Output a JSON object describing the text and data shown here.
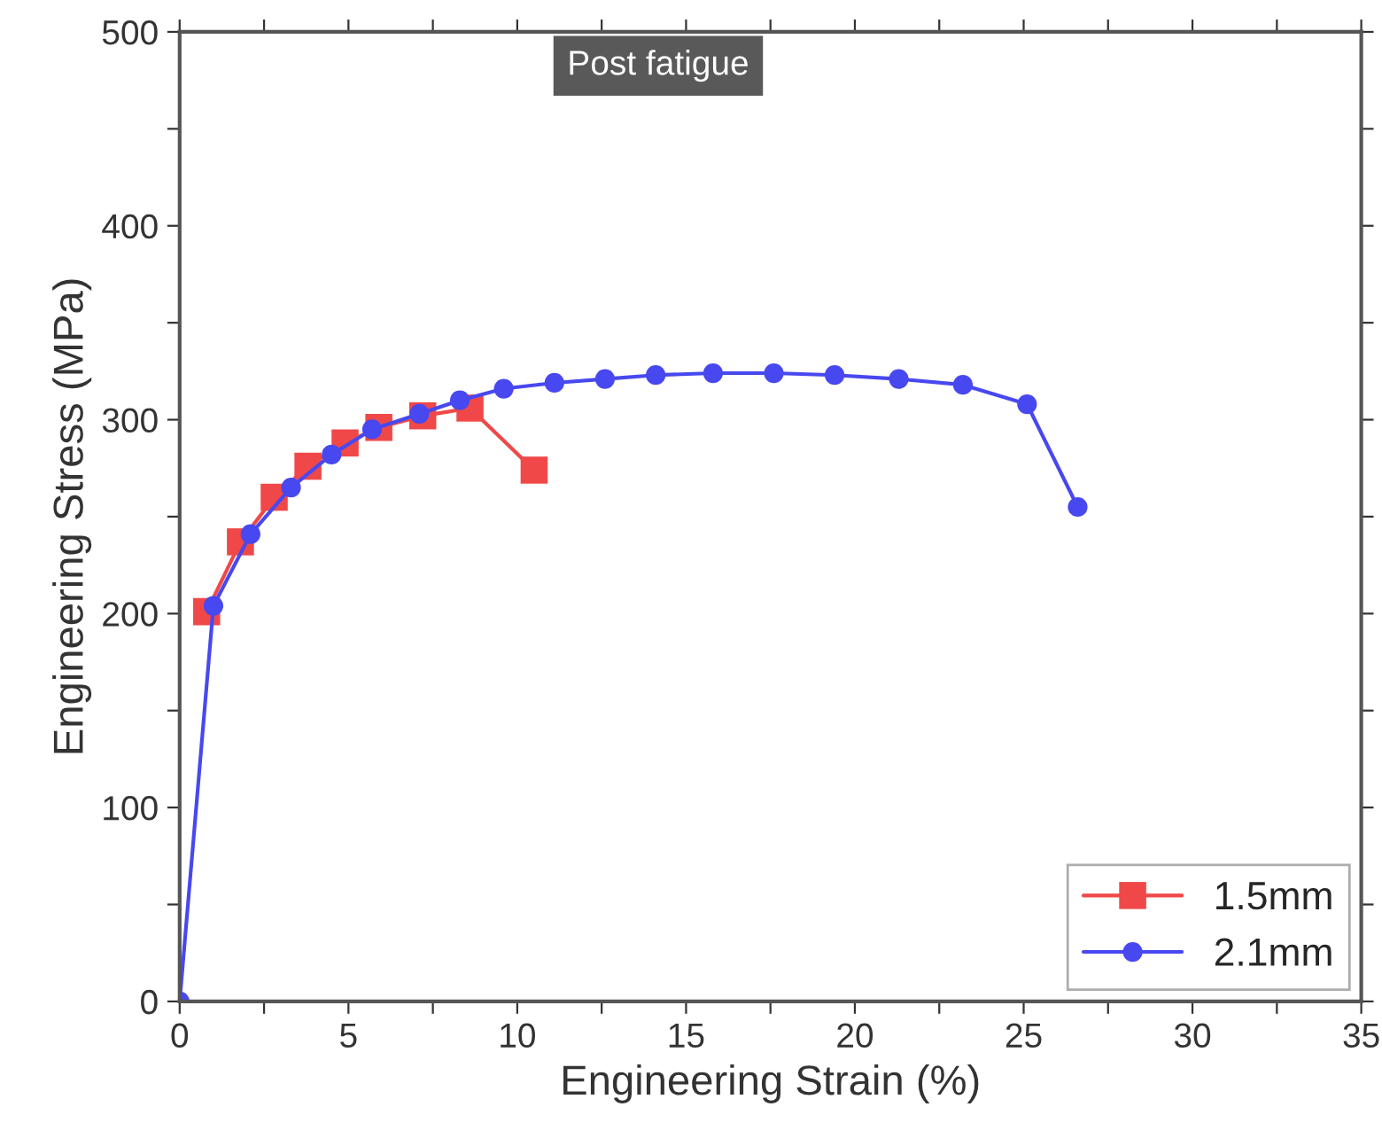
{
  "chart_data": {
    "type": "line",
    "xlabel": "Engineering Strain (%)",
    "ylabel": "Engineering Stress (MPa)",
    "annotations": [
      "Post fatigue"
    ],
    "series": [
      {
        "name": "1.5mm",
        "color": "#f04848",
        "marker": "square",
        "x": [
          0.8,
          1.8,
          2.8,
          3.8,
          4.9,
          5.9,
          7.2,
          8.6,
          10.5
        ],
        "values": [
          201,
          237,
          260,
          276,
          288,
          296,
          302,
          306,
          274
        ]
      },
      {
        "name": "2.1mm",
        "color": "#4848f0",
        "marker": "circle",
        "x": [
          0,
          1.0,
          2.1,
          3.3,
          4.5,
          5.7,
          7.1,
          8.3,
          9.6,
          11.1,
          12.6,
          14.1,
          15.8,
          17.6,
          19.4,
          21.3,
          23.2,
          25.1,
          26.6
        ],
        "values": [
          0,
          204,
          241,
          265,
          282,
          295,
          303,
          310,
          316,
          319,
          321,
          323,
          324,
          324,
          323,
          321,
          318,
          308,
          255
        ]
      }
    ],
    "xlim": [
      0,
      35
    ],
    "ylim": [
      0,
      500
    ],
    "xticks": [
      0,
      {
        "value": 2.5,
        "label": null
      },
      5,
      {
        "value": 7.5,
        "label": null
      },
      10,
      {
        "value": 12.5,
        "label": null
      },
      15,
      {
        "value": 17.5,
        "label": null
      },
      20,
      {
        "value": 22.5,
        "label": null
      },
      25,
      {
        "value": 27.5,
        "label": null
      },
      30,
      {
        "value": 32.5,
        "label": null
      },
      35
    ],
    "yticks": [
      0,
      {
        "value": 50,
        "label": null
      },
      100,
      {
        "value": 150,
        "label": null
      },
      200,
      {
        "value": 250,
        "label": null
      },
      300,
      {
        "value": 350,
        "label": null
      },
      400,
      {
        "value": 450,
        "label": null
      },
      500
    ],
    "legend": "bottom right",
    "grid": false
  }
}
